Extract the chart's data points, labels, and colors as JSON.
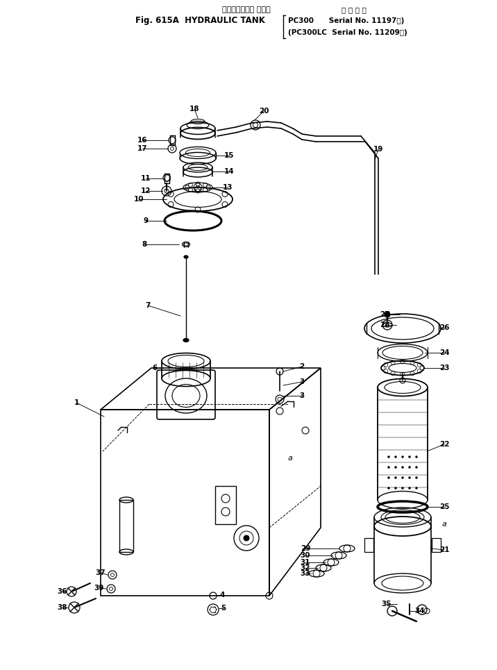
{
  "bg_color": "#ffffff",
  "fig_width": 7.16,
  "fig_height": 9.65,
  "dpi": 100,
  "title_jp": "ハイドロリック タンク",
  "title_en": "Fig. 615A  HYDRAULIC TANK",
  "serial_header": "適 用 号 機",
  "serial1": "PC300      Serial No. 11197～)",
  "serial2": "(PC300LC  Serial No. 11209～)"
}
